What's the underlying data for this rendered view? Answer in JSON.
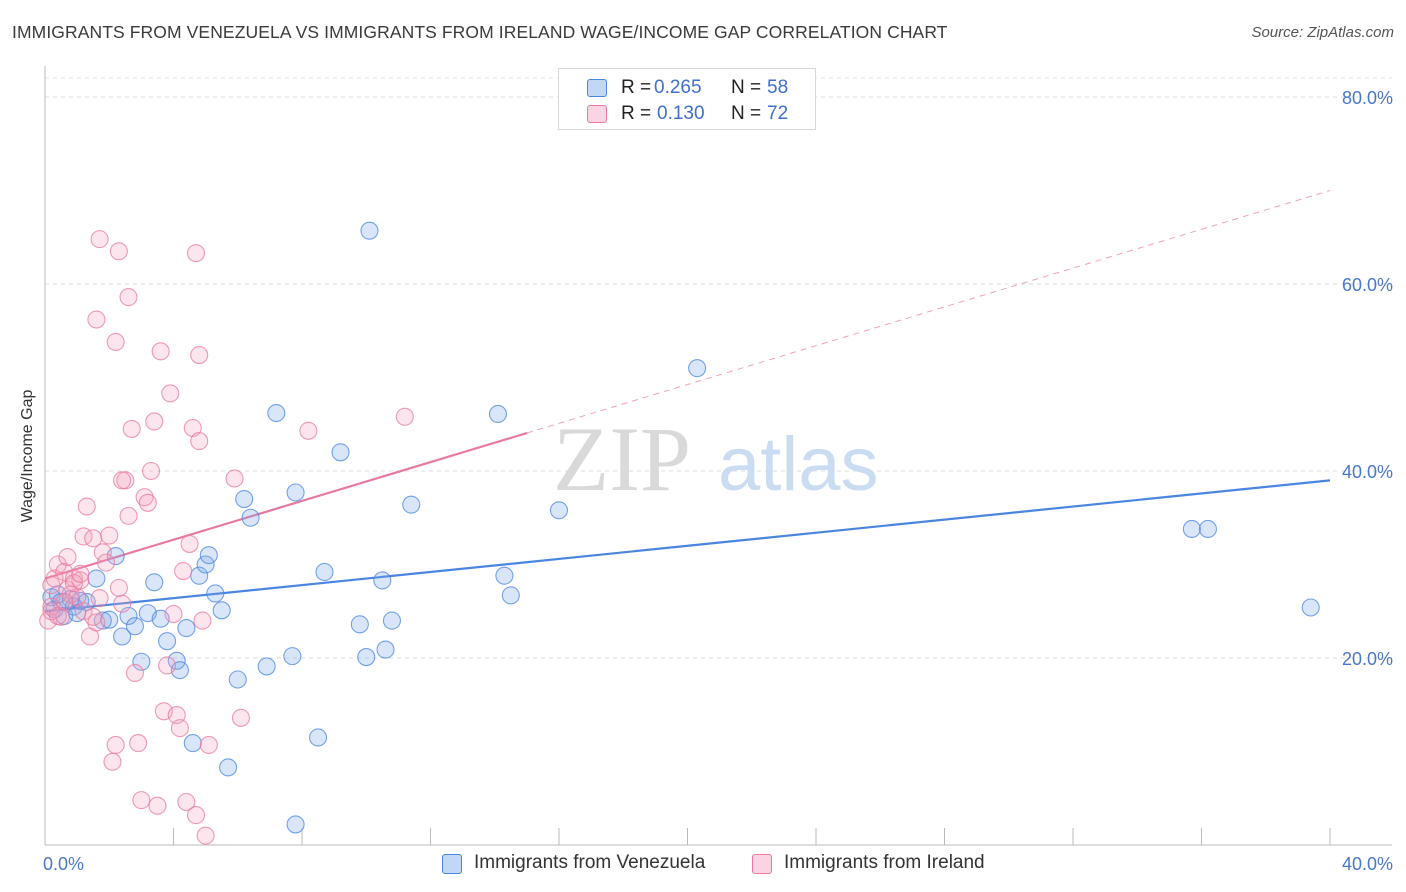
{
  "title": "IMMIGRANTS FROM VENEZUELA VS IMMIGRANTS FROM IRELAND WAGE/INCOME GAP CORRELATION CHART",
  "source": "Source: ZipAtlas.com",
  "watermark": {
    "zip": "ZIP",
    "atlas": "atlas"
  },
  "legend": {
    "r_label": "R =",
    "n_label": "N =",
    "rows": [
      {
        "r": "0.265",
        "n": "58",
        "color": "#4a86e0"
      },
      {
        "r": "0.130",
        "n": "72",
        "color": "#e87aa0"
      }
    ]
  },
  "bottom_legend": [
    {
      "label": "Immigrants from Venezuela"
    },
    {
      "label": "Immigrants from Ireland"
    }
  ],
  "chart_data": {
    "type": "scatter",
    "title": "IMMIGRANTS FROM VENEZUELA VS IMMIGRANTS FROM IRELAND WAGE/INCOME GAP CORRELATION CHART",
    "xlabel": "",
    "ylabel": "Wage/Income Gap",
    "xlim": [
      0,
      40
    ],
    "ylim": [
      0,
      80
    ],
    "x_ticks": [
      "0.0%",
      "40.0%"
    ],
    "y_ticks": [
      {
        "value": 20,
        "label": "20.0%"
      },
      {
        "value": 40,
        "label": "40.0%"
      },
      {
        "value": 60,
        "label": "60.0%"
      },
      {
        "value": 80,
        "label": "80.0%"
      }
    ],
    "series": [
      {
        "name": "Immigrants from Venezuela",
        "color": "#4a86e0",
        "fill": "rgba(120,165,235,0.28)",
        "trend": {
          "x0": 0,
          "y0": 25.0,
          "x1": 40,
          "y1": 39.0,
          "solid_to": 40
        },
        "points": [
          [
            0.2,
            26.5
          ],
          [
            0.3,
            25.2
          ],
          [
            0.4,
            26.8
          ],
          [
            0.5,
            26.0
          ],
          [
            0.6,
            24.5
          ],
          [
            0.8,
            26.3
          ],
          [
            0.9,
            25.5
          ],
          [
            1.0,
            24.8
          ],
          [
            1.1,
            26.1
          ],
          [
            1.3,
            26.0
          ],
          [
            1.6,
            28.5
          ],
          [
            1.8,
            24.0
          ],
          [
            2.0,
            24.1
          ],
          [
            2.2,
            30.9
          ],
          [
            2.4,
            22.3
          ],
          [
            2.6,
            24.5
          ],
          [
            2.8,
            23.4
          ],
          [
            3.0,
            19.6
          ],
          [
            3.2,
            24.8
          ],
          [
            3.4,
            28.1
          ],
          [
            3.6,
            24.2
          ],
          [
            3.8,
            21.8
          ],
          [
            4.1,
            19.7
          ],
          [
            4.2,
            18.7
          ],
          [
            4.4,
            23.2
          ],
          [
            4.6,
            10.9
          ],
          [
            4.8,
            28.8
          ],
          [
            5.0,
            30.0
          ],
          [
            5.1,
            31.0
          ],
          [
            5.3,
            26.9
          ],
          [
            5.5,
            25.1
          ],
          [
            5.7,
            8.3
          ],
          [
            6.0,
            17.7
          ],
          [
            6.2,
            37.0
          ],
          [
            6.4,
            35.0
          ],
          [
            6.9,
            19.1
          ],
          [
            7.2,
            46.2
          ],
          [
            7.7,
            20.2
          ],
          [
            7.8,
            2.2
          ],
          [
            7.8,
            37.7
          ],
          [
            8.5,
            11.5
          ],
          [
            8.7,
            29.2
          ],
          [
            9.2,
            42.0
          ],
          [
            9.8,
            23.6
          ],
          [
            10.0,
            20.1
          ],
          [
            10.1,
            65.7
          ],
          [
            10.5,
            28.3
          ],
          [
            10.6,
            20.9
          ],
          [
            10.8,
            24.0
          ],
          [
            11.4,
            36.4
          ],
          [
            14.1,
            46.1
          ],
          [
            14.3,
            28.8
          ],
          [
            14.5,
            26.7
          ],
          [
            16.0,
            35.8
          ],
          [
            20.3,
            51.0
          ],
          [
            35.7,
            33.8
          ],
          [
            36.2,
            33.8
          ],
          [
            39.4,
            25.4
          ]
        ]
      },
      {
        "name": "Immigrants from Ireland",
        "color": "#e87aa0",
        "fill": "rgba(244,160,190,0.28)",
        "trend": {
          "x0": 0,
          "y0": 28.5,
          "x1": 40,
          "y1": 70.0,
          "solid_to": 15
        },
        "points": [
          [
            0.1,
            24.0
          ],
          [
            0.2,
            25.5
          ],
          [
            0.2,
            27.8
          ],
          [
            0.3,
            28.5
          ],
          [
            0.4,
            30.0
          ],
          [
            0.5,
            24.4
          ],
          [
            0.6,
            29.2
          ],
          [
            0.7,
            27.3
          ],
          [
            0.8,
            26.8
          ],
          [
            0.9,
            28.5
          ],
          [
            1.0,
            26.5
          ],
          [
            1.1,
            28.3
          ],
          [
            1.2,
            33.0
          ],
          [
            1.3,
            36.2
          ],
          [
            1.4,
            22.3
          ],
          [
            1.5,
            32.8
          ],
          [
            1.6,
            23.8
          ],
          [
            1.7,
            26.4
          ],
          [
            1.8,
            31.3
          ],
          [
            1.9,
            30.2
          ],
          [
            2.0,
            33.1
          ],
          [
            2.1,
            8.9
          ],
          [
            2.2,
            10.7
          ],
          [
            2.3,
            27.5
          ],
          [
            2.4,
            25.8
          ],
          [
            2.5,
            39.0
          ],
          [
            2.6,
            35.2
          ],
          [
            2.7,
            44.5
          ],
          [
            2.8,
            18.4
          ],
          [
            2.9,
            10.9
          ],
          [
            3.0,
            4.8
          ],
          [
            3.1,
            37.2
          ],
          [
            3.2,
            36.6
          ],
          [
            3.3,
            40.0
          ],
          [
            3.4,
            45.3
          ],
          [
            3.5,
            4.2
          ],
          [
            3.6,
            52.8
          ],
          [
            3.7,
            14.3
          ],
          [
            3.8,
            19.2
          ],
          [
            3.9,
            48.3
          ],
          [
            4.0,
            24.7
          ],
          [
            4.1,
            13.9
          ],
          [
            4.2,
            12.5
          ],
          [
            4.3,
            29.3
          ],
          [
            4.4,
            4.6
          ],
          [
            4.5,
            32.2
          ],
          [
            4.6,
            44.6
          ],
          [
            4.7,
            3.2
          ],
          [
            4.8,
            43.2
          ],
          [
            4.9,
            24.0
          ],
          [
            5.0,
            1.0
          ],
          [
            1.6,
            56.2
          ],
          [
            1.7,
            64.8
          ],
          [
            2.3,
            63.5
          ],
          [
            2.6,
            58.6
          ],
          [
            2.2,
            53.8
          ],
          [
            4.7,
            63.3
          ],
          [
            4.8,
            52.4
          ],
          [
            5.1,
            10.7
          ],
          [
            5.9,
            39.2
          ],
          [
            6.1,
            13.6
          ],
          [
            8.2,
            44.3
          ],
          [
            11.2,
            45.8
          ],
          [
            0.2,
            25.0
          ],
          [
            0.4,
            24.5
          ],
          [
            0.6,
            26.0
          ],
          [
            0.9,
            28.0
          ],
          [
            1.2,
            25.0
          ],
          [
            2.4,
            39.0
          ],
          [
            1.1,
            29.0
          ],
          [
            0.7,
            30.8
          ],
          [
            1.5,
            24.4
          ]
        ]
      }
    ]
  }
}
